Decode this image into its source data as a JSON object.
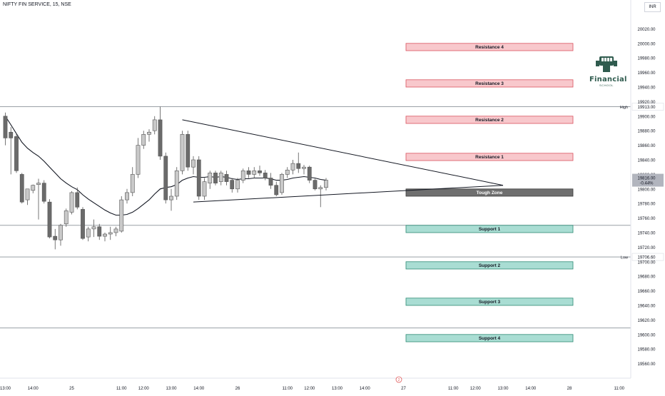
{
  "header": {
    "symbol": "NIFTY FIN SERVICE, 15, NSE",
    "currency_label": "INR"
  },
  "logo": {
    "word": "Financial",
    "sub": "SCHOOL"
  },
  "colors": {
    "up_candle": "#c9c9c9",
    "down_candle": "#6b6b6b",
    "wick": "#555555",
    "resistance_fill": "#f8c8cc",
    "resistance_border": "#d9535f",
    "support_fill": "#a9ddd3",
    "support_border": "#2e8b74",
    "tough_fill": "#6f6f6f",
    "ema": "#131722",
    "level_line": "#9aa0a6",
    "trend_line": "#131722"
  },
  "chart_data": {
    "type": "candlestick",
    "symbol": "NIFTY FIN SERVICE",
    "interval": "15",
    "exchange": "NSE",
    "y_range": [
      19540,
      20040
    ],
    "y_ticks": [
      19560,
      19580,
      19600,
      19620,
      19640,
      19660,
      19680,
      19700,
      19720,
      19740,
      19760,
      19780,
      19800,
      19820,
      19840,
      19860,
      19880,
      19900,
      19920,
      19940,
      19960,
      19980,
      20000,
      20020
    ],
    "y_tick_labels": [
      "19560.00",
      "19580.00",
      "19600.00",
      "19620.00",
      "19640.00",
      "19660.00",
      "19680.00",
      "19700.00",
      "19720.00",
      "19740.00",
      "19760.00",
      "19780.00",
      "19800.00",
      "19820.00",
      "19840.00",
      "19860.00",
      "19880.00",
      "19900.00",
      "19920.00",
      "19940.00",
      "19960.00",
      "19980.00",
      "20000.00",
      "20020.00"
    ],
    "x_ticks": [
      {
        "i": 0,
        "label": "13:00"
      },
      {
        "i": 5,
        "label": "14:00"
      },
      {
        "i": 12,
        "label": "25"
      },
      {
        "i": 21,
        "label": "11:00"
      },
      {
        "i": 25,
        "label": "12:00"
      },
      {
        "i": 30,
        "label": "13:00"
      },
      {
        "i": 35,
        "label": "14:00"
      },
      {
        "i": 42,
        "label": "26"
      },
      {
        "i": 51,
        "label": "11:00"
      },
      {
        "i": 55,
        "label": "12:00"
      },
      {
        "i": 60,
        "label": "13:00"
      },
      {
        "i": 65,
        "label": "14:00"
      },
      {
        "i": 72,
        "label": "27"
      },
      {
        "i": 81,
        "label": "11:00"
      },
      {
        "i": 85,
        "label": "12:00"
      },
      {
        "i": 90,
        "label": "13:00"
      },
      {
        "i": 95,
        "label": "14:00"
      },
      {
        "i": 102,
        "label": "28"
      },
      {
        "i": 111,
        "label": "11:00"
      }
    ],
    "candles": [
      {
        "o": 19900,
        "h": 19905,
        "l": 19860,
        "c": 19870
      },
      {
        "o": 19878,
        "h": 19885,
        "l": 19820,
        "c": 19870
      },
      {
        "o": 19872,
        "h": 19876,
        "l": 19822,
        "c": 19825
      },
      {
        "o": 19820,
        "h": 19822,
        "l": 19780,
        "c": 19782
      },
      {
        "o": 19785,
        "h": 19800,
        "l": 19778,
        "c": 19800
      },
      {
        "o": 19798,
        "h": 19806,
        "l": 19794,
        "c": 19805
      },
      {
        "o": 19806,
        "h": 19814,
        "l": 19758,
        "c": 19808
      },
      {
        "o": 19808,
        "h": 19812,
        "l": 19780,
        "c": 19783
      },
      {
        "o": 19782,
        "h": 19786,
        "l": 19732,
        "c": 19734
      },
      {
        "o": 19735,
        "h": 19745,
        "l": 19717,
        "c": 19730
      },
      {
        "o": 19730,
        "h": 19752,
        "l": 19722,
        "c": 19750
      },
      {
        "o": 19752,
        "h": 19773,
        "l": 19748,
        "c": 19770
      },
      {
        "o": 19768,
        "h": 19797,
        "l": 19765,
        "c": 19795
      },
      {
        "o": 19795,
        "h": 19802,
        "l": 19772,
        "c": 19775
      },
      {
        "o": 19772,
        "h": 19775,
        "l": 19730,
        "c": 19732
      },
      {
        "o": 19734,
        "h": 19748,
        "l": 19728,
        "c": 19745
      },
      {
        "o": 19745,
        "h": 19758,
        "l": 19734,
        "c": 19748
      },
      {
        "o": 19748,
        "h": 19752,
        "l": 19730,
        "c": 19735
      },
      {
        "o": 19735,
        "h": 19740,
        "l": 19728,
        "c": 19738
      },
      {
        "o": 19738,
        "h": 19748,
        "l": 19730,
        "c": 19740
      },
      {
        "o": 19740,
        "h": 19748,
        "l": 19735,
        "c": 19745
      },
      {
        "o": 19742,
        "h": 19790,
        "l": 19740,
        "c": 19785
      },
      {
        "o": 19785,
        "h": 19800,
        "l": 19780,
        "c": 19795
      },
      {
        "o": 19795,
        "h": 19830,
        "l": 19790,
        "c": 19820
      },
      {
        "o": 19820,
        "h": 19870,
        "l": 19815,
        "c": 19860
      },
      {
        "o": 19860,
        "h": 19880,
        "l": 19855,
        "c": 19875
      },
      {
        "o": 19875,
        "h": 19882,
        "l": 19865,
        "c": 19878
      },
      {
        "o": 19880,
        "h": 19900,
        "l": 19875,
        "c": 19895
      },
      {
        "o": 19895,
        "h": 19913,
        "l": 19840,
        "c": 19845
      },
      {
        "o": 19845,
        "h": 19850,
        "l": 19780,
        "c": 19785
      },
      {
        "o": 19785,
        "h": 19800,
        "l": 19770,
        "c": 19790
      },
      {
        "o": 19790,
        "h": 19830,
        "l": 19785,
        "c": 19825
      },
      {
        "o": 19825,
        "h": 19880,
        "l": 19820,
        "c": 19875
      },
      {
        "o": 19875,
        "h": 19880,
        "l": 19825,
        "c": 19830
      },
      {
        "o": 19830,
        "h": 19845,
        "l": 19820,
        "c": 19840
      },
      {
        "o": 19840,
        "h": 19845,
        "l": 19785,
        "c": 19790
      },
      {
        "o": 19790,
        "h": 19815,
        "l": 19785,
        "c": 19810
      },
      {
        "o": 19808,
        "h": 19825,
        "l": 19800,
        "c": 19822
      },
      {
        "o": 19822,
        "h": 19825,
        "l": 19805,
        "c": 19808
      },
      {
        "o": 19810,
        "h": 19825,
        "l": 19805,
        "c": 19822
      },
      {
        "o": 19820,
        "h": 19825,
        "l": 19805,
        "c": 19810
      },
      {
        "o": 19812,
        "h": 19815,
        "l": 19795,
        "c": 19800
      },
      {
        "o": 19800,
        "h": 19815,
        "l": 19795,
        "c": 19812
      },
      {
        "o": 19812,
        "h": 19828,
        "l": 19808,
        "c": 19825
      },
      {
        "o": 19825,
        "h": 19830,
        "l": 19815,
        "c": 19820
      },
      {
        "o": 19820,
        "h": 19830,
        "l": 19815,
        "c": 19825
      },
      {
        "o": 19825,
        "h": 19832,
        "l": 19818,
        "c": 19822
      },
      {
        "o": 19822,
        "h": 19826,
        "l": 19812,
        "c": 19815
      },
      {
        "o": 19815,
        "h": 19822,
        "l": 19800,
        "c": 19805
      },
      {
        "o": 19805,
        "h": 19810,
        "l": 19790,
        "c": 19792
      },
      {
        "o": 19795,
        "h": 19822,
        "l": 19792,
        "c": 19820
      },
      {
        "o": 19820,
        "h": 19830,
        "l": 19815,
        "c": 19826
      },
      {
        "o": 19826,
        "h": 19840,
        "l": 19820,
        "c": 19835
      },
      {
        "o": 19835,
        "h": 19850,
        "l": 19822,
        "c": 19828
      },
      {
        "o": 19828,
        "h": 19833,
        "l": 19820,
        "c": 19830
      },
      {
        "o": 19830,
        "h": 19832,
        "l": 19808,
        "c": 19812
      },
      {
        "o": 19812,
        "h": 19814,
        "l": 19798,
        "c": 19800
      },
      {
        "o": 19800,
        "h": 19805,
        "l": 19775,
        "c": 19802
      },
      {
        "o": 19802,
        "h": 19815,
        "l": 19798,
        "c": 19812
      }
    ],
    "ema": [
      19900,
      19888,
      19876,
      19864,
      19856,
      19850,
      19845,
      19838,
      19830,
      19822,
      19814,
      19808,
      19803,
      19799,
      19792,
      19786,
      19781,
      19776,
      19771,
      19767,
      19764,
      19764,
      19765,
      19768,
      19773,
      19779,
      19785,
      19793,
      19800,
      19802,
      19803,
      19806,
      19812,
      19815,
      19817,
      19816,
      19816,
      19817,
      19816,
      19817,
      19816,
      19814,
      19813,
      19814,
      19814,
      19815,
      19815,
      19815,
      19814,
      19812,
      19812,
      19813,
      19815,
      19816,
      19817,
      19816,
      19815,
      19813,
      19812
    ],
    "price_lines": [
      {
        "price": 19913.0,
        "label": "High",
        "value": "19913.00"
      },
      {
        "price": 19750,
        "label": "",
        "value": ""
      },
      {
        "price": 19706.6,
        "label": "Low",
        "value": "19706.60"
      },
      {
        "price": 19609,
        "label": "",
        "value": ""
      }
    ],
    "current_price": {
      "value": "19816.00",
      "change": "-0.44%"
    },
    "zones": [
      {
        "label": "Resistance 4",
        "top": 20000,
        "bottom": 19990,
        "kind": "resistance"
      },
      {
        "label": "Resistance 3",
        "top": 19950,
        "bottom": 19940,
        "kind": "resistance"
      },
      {
        "label": "Resistance 2",
        "top": 19900,
        "bottom": 19890,
        "kind": "resistance"
      },
      {
        "label": "Resistance 1",
        "top": 19849,
        "bottom": 19839,
        "kind": "resistance"
      },
      {
        "label": "Tough Zone",
        "top": 19800,
        "bottom": 19790,
        "kind": "tough"
      },
      {
        "label": "Support 1",
        "top": 19750,
        "bottom": 19740,
        "kind": "support"
      },
      {
        "label": "Support 2",
        "top": 19700,
        "bottom": 19690,
        "kind": "support"
      },
      {
        "label": "Support 3",
        "top": 19650,
        "bottom": 19640,
        "kind": "support"
      },
      {
        "label": "Support 4",
        "top": 19600,
        "bottom": 19590,
        "kind": "support"
      }
    ],
    "trendlines": [
      {
        "from": {
          "i": 32,
          "price": 19895
        },
        "to": {
          "i": 90,
          "price": 19805
        }
      },
      {
        "from": {
          "i": 34,
          "price": 19782
        },
        "to": {
          "i": 90,
          "price": 19805
        }
      }
    ],
    "marker": {
      "label": "2"
    }
  }
}
